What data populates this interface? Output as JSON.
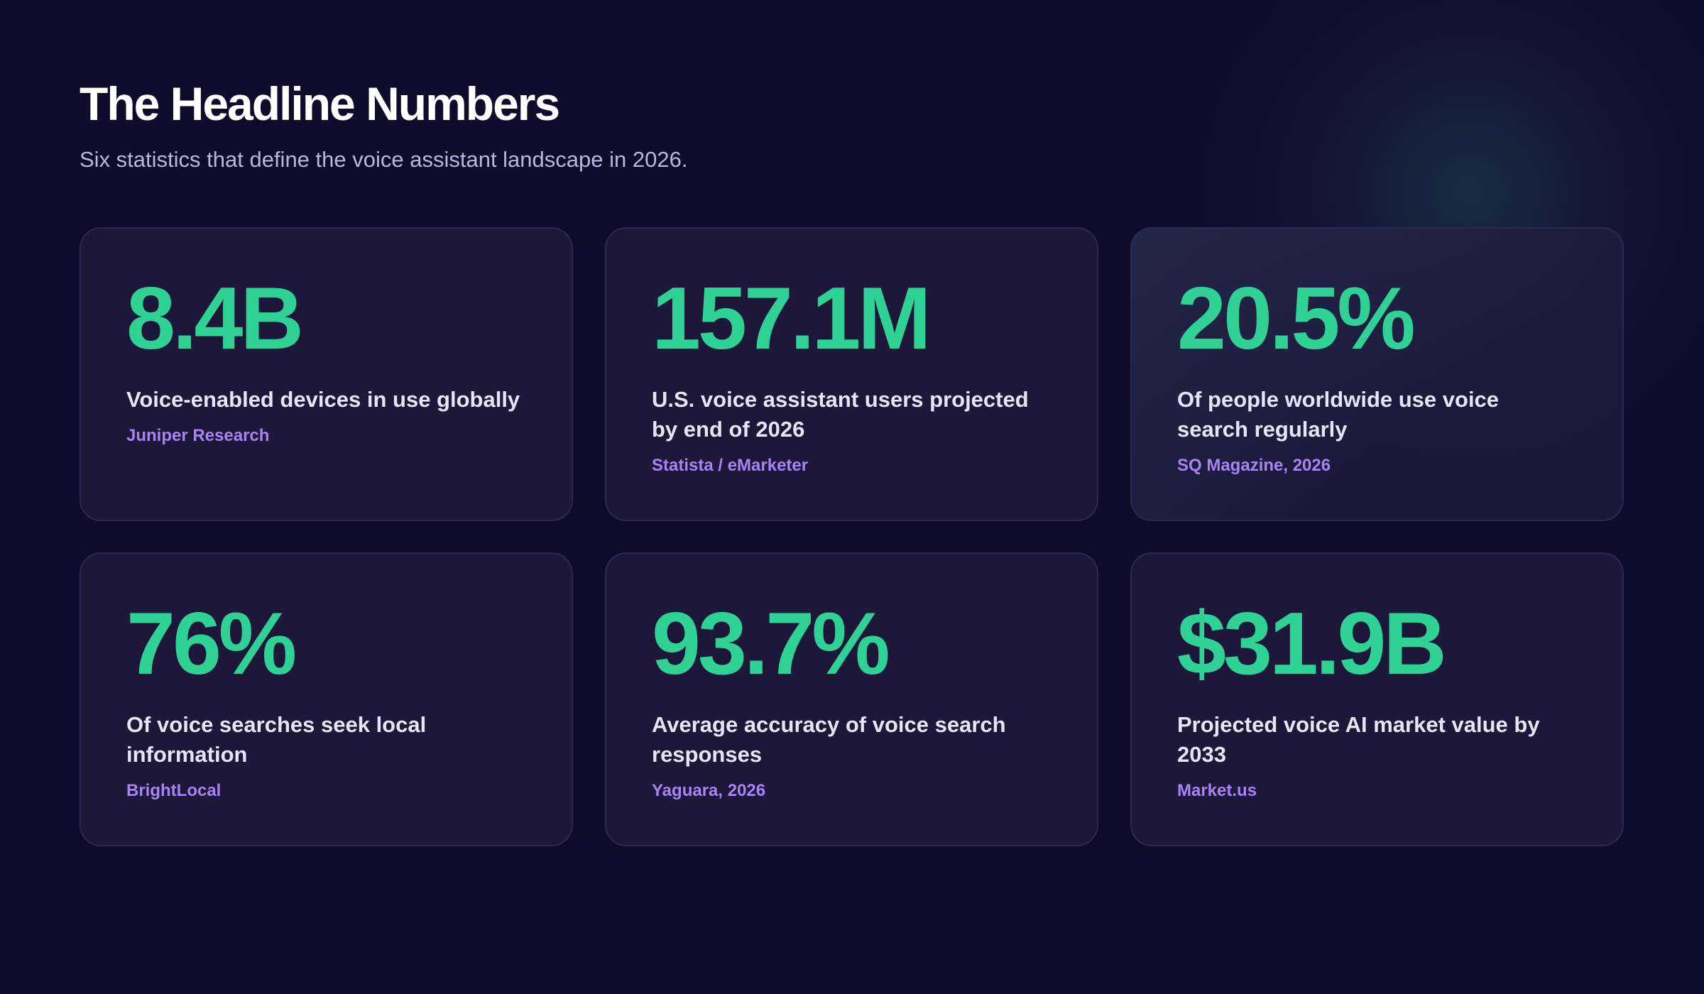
{
  "header": {
    "title": "The Headline Numbers",
    "subtitle": "Six statistics that define the voice assistant landscape in 2026."
  },
  "cards": [
    {
      "value": "8.4B",
      "label": "Voice-enabled devices in use globally",
      "source": "Juniper Research"
    },
    {
      "value": "157.1M",
      "label": "U.S. voice assistant users projected by end of 2026",
      "source": "Statista / eMarketer"
    },
    {
      "value": "20.5%",
      "label": "Of people worldwide use voice search regularly",
      "source": "SQ Magazine, 2026"
    },
    {
      "value": "76%",
      "label": "Of voice searches seek local information",
      "source": "BrightLocal"
    },
    {
      "value": "93.7%",
      "label": "Average accuracy of voice search responses",
      "source": "Yaguara, 2026"
    },
    {
      "value": "$31.9B",
      "label": "Projected voice AI market value by 2033",
      "source": "Market.us"
    }
  ],
  "colors": {
    "background": "#0f0c2b",
    "card": "#1c1738",
    "stat_value": "#2fd195",
    "source": "#a784f1",
    "title": "#ffffff"
  }
}
